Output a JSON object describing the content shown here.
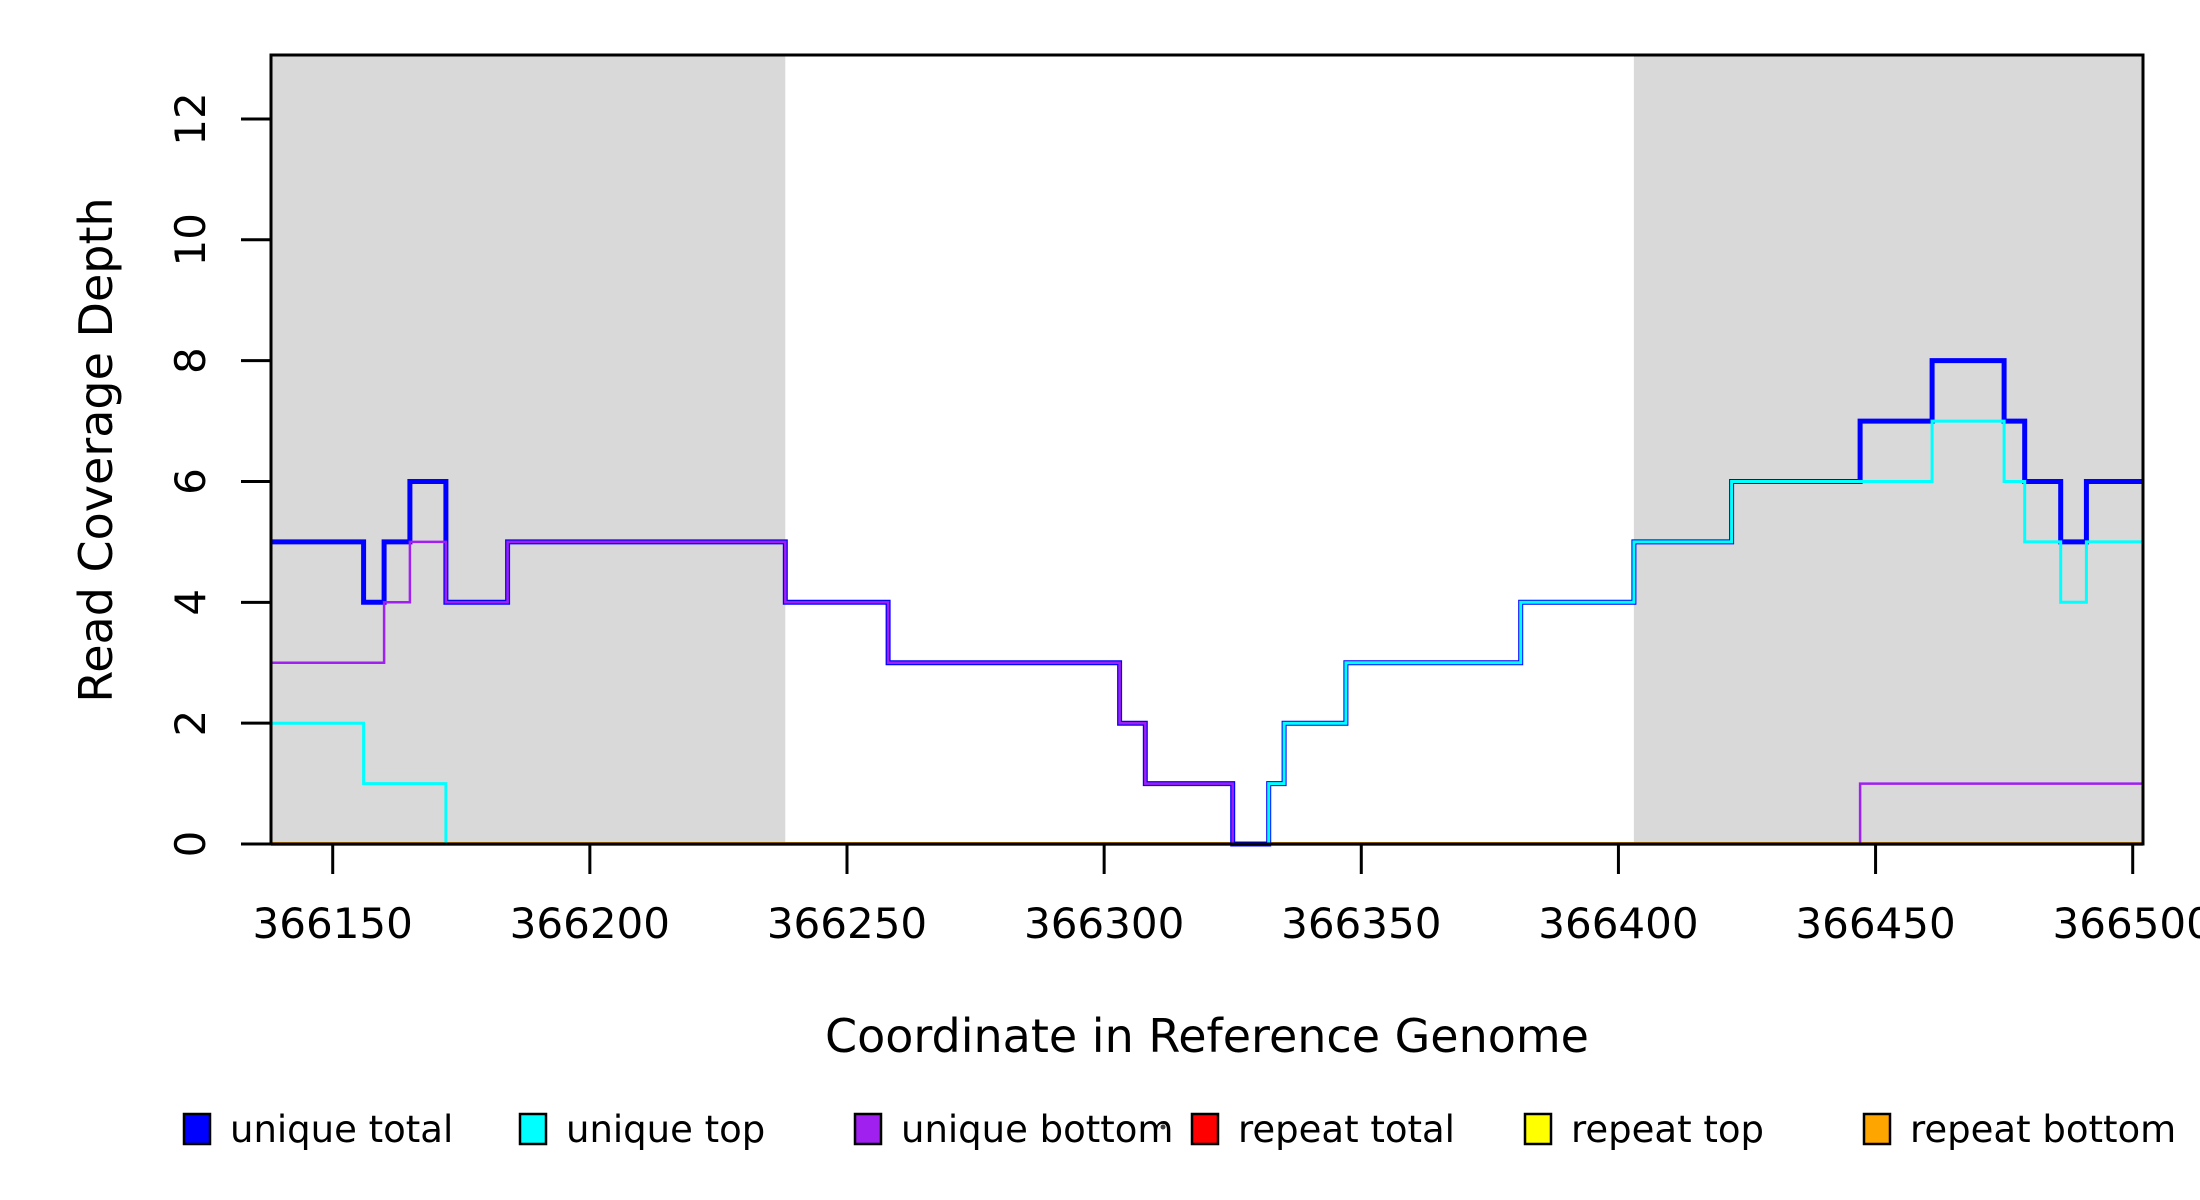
{
  "figure": {
    "background": "#ffffff",
    "box_color": "#000000",
    "shade_color": "#d9d9d9"
  },
  "chart_data": {
    "type": "line",
    "subtype": "step",
    "title": "",
    "xlabel": "Coordinate in Reference Genome",
    "ylabel": "Read Coverage Depth",
    "xlim": [
      366138,
      366502
    ],
    "ylim": [
      0,
      13
    ],
    "x_ticks": [
      366150,
      366200,
      366250,
      366300,
      366350,
      366400,
      366450,
      366500
    ],
    "y_ticks": [
      0,
      2,
      4,
      6,
      8,
      10,
      12
    ],
    "grid": false,
    "legend_position": "bottom",
    "shaded_regions": [
      {
        "x0": 366138,
        "x1": 366238,
        "color": "#d9d9d9"
      },
      {
        "x0": 366403,
        "x1": 366502,
        "color": "#d9d9d9"
      }
    ],
    "draw_order": [
      "repeat total",
      "repeat top",
      "repeat bottom",
      "unique total",
      "unique top",
      "unique bottom"
    ],
    "series": [
      {
        "name": "unique total",
        "color": "#0000ff",
        "line_width": 5,
        "steps": [
          [
            366138,
            5
          ],
          [
            366156,
            4
          ],
          [
            366160,
            5
          ],
          [
            366165,
            6
          ],
          [
            366172,
            4
          ],
          [
            366184,
            5
          ],
          [
            366238,
            4
          ],
          [
            366258,
            3
          ],
          [
            366303,
            2
          ],
          [
            366308,
            1
          ],
          [
            366325,
            0
          ],
          [
            366332,
            1
          ],
          [
            366335,
            2
          ],
          [
            366347,
            3
          ],
          [
            366381,
            4
          ],
          [
            366403,
            5
          ],
          [
            366422,
            6
          ],
          [
            366447,
            7
          ],
          [
            366461,
            8
          ],
          [
            366475,
            7
          ],
          [
            366479,
            6
          ],
          [
            366486,
            5
          ],
          [
            366491,
            6
          ],
          [
            366502,
            6
          ]
        ]
      },
      {
        "name": "unique top",
        "color": "#00ffff",
        "line_width": 3,
        "steps": [
          [
            366138,
            2
          ],
          [
            366156,
            1
          ],
          [
            366172,
            0
          ],
          [
            366332,
            1
          ],
          [
            366335,
            2
          ],
          [
            366347,
            3
          ],
          [
            366381,
            4
          ],
          [
            366403,
            5
          ],
          [
            366422,
            6
          ],
          [
            366461,
            7
          ],
          [
            366475,
            6
          ],
          [
            366479,
            5
          ],
          [
            366486,
            4
          ],
          [
            366491,
            5
          ],
          [
            366502,
            5
          ]
        ]
      },
      {
        "name": "unique bottom",
        "color": "#a020f0",
        "line_width": 2.5,
        "steps": [
          [
            366138,
            3
          ],
          [
            366160,
            4
          ],
          [
            366165,
            5
          ],
          [
            366172,
            4
          ],
          [
            366184,
            5
          ],
          [
            366238,
            4
          ],
          [
            366258,
            3
          ],
          [
            366303,
            2
          ],
          [
            366308,
            1
          ],
          [
            366325,
            0
          ],
          [
            366447,
            1
          ],
          [
            366502,
            1
          ]
        ]
      },
      {
        "name": "repeat total",
        "color": "#ff0000",
        "line_width": 2.5,
        "steps": [
          [
            366138,
            0
          ],
          [
            366502,
            0
          ]
        ]
      },
      {
        "name": "repeat top",
        "color": "#ffff00",
        "line_width": 2.5,
        "steps": [
          [
            366138,
            0
          ],
          [
            366502,
            0
          ]
        ]
      },
      {
        "name": "repeat bottom",
        "color": "#ffa500",
        "line_width": 4,
        "steps": [
          [
            366138,
            0
          ],
          [
            366502,
            0
          ]
        ]
      }
    ]
  }
}
